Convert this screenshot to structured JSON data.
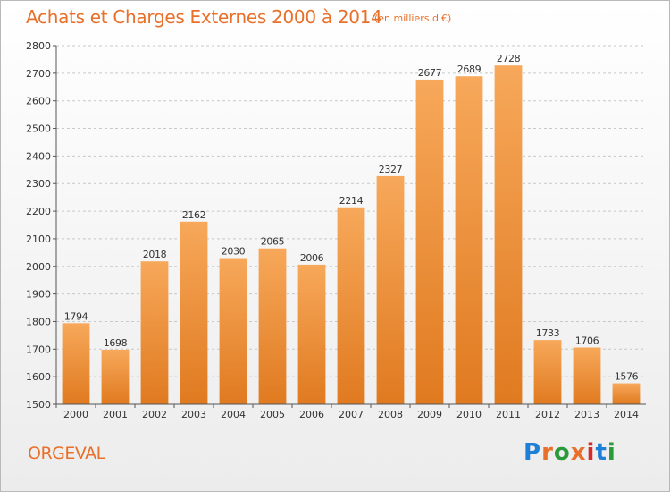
{
  "header": {
    "title": "Achats et Charges Externes 2000 à 2014",
    "unit": "(en milliers d'€)"
  },
  "footer": {
    "location": "ORGEVAL",
    "logo": "Proxiti",
    "logo_colors": [
      "#1e7fd6",
      "#e8702a",
      "#2a9a3a",
      "#e8702a",
      "#d42a2a",
      "#1e7fd6",
      "#2a9a3a"
    ]
  },
  "colors": {
    "accent": "#e8702a",
    "bar_top": "#f7a85a",
    "bar_bottom": "#e07a20",
    "grid": "#c8c8c8"
  },
  "chart_data": {
    "type": "bar",
    "categories": [
      "2000",
      "2001",
      "2002",
      "2003",
      "2004",
      "2005",
      "2006",
      "2007",
      "2008",
      "2009",
      "2010",
      "2011",
      "2012",
      "2013",
      "2014"
    ],
    "values": [
      1794,
      1698,
      2018,
      2162,
      2030,
      2065,
      2006,
      2214,
      2327,
      2677,
      2689,
      2728,
      1733,
      1706,
      1576
    ],
    "ylim": [
      1500,
      2800
    ],
    "yticks": [
      1500,
      1600,
      1700,
      1800,
      1900,
      2000,
      2100,
      2200,
      2300,
      2400,
      2500,
      2600,
      2700,
      2800
    ],
    "grid": "horizontal dashed",
    "xlabel": "",
    "ylabel": ""
  }
}
